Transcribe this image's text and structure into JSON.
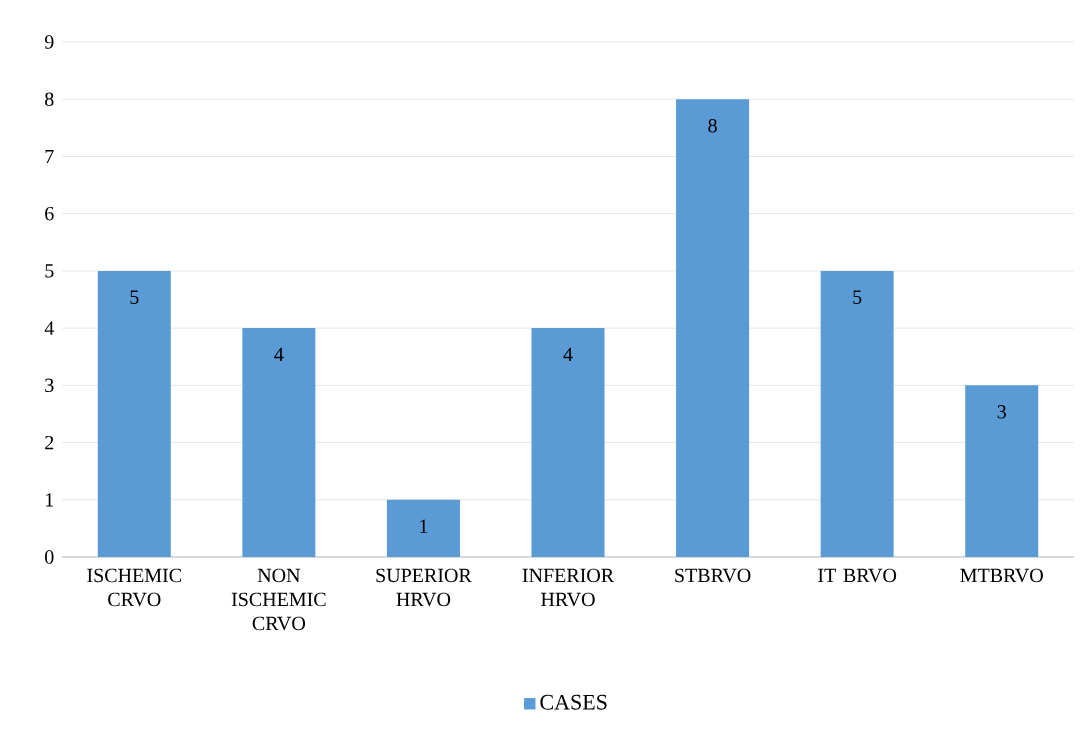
{
  "chart_data": {
    "type": "bar",
    "categories": [
      "ISCHEMIC CRVO",
      "NON ISCHEMIC CRVO",
      "SUPERIOR HRVO",
      "INFERIOR HRVO",
      "STBRVO",
      "IT BRVO",
      "MTBRVO"
    ],
    "series": [
      {
        "name": "CASES",
        "color": "#5b9bd5",
        "values": [
          5,
          4,
          1,
          4,
          8,
          5,
          3
        ]
      }
    ],
    "ylim": [
      0,
      9
    ],
    "yticks": [
      0,
      1,
      2,
      3,
      4,
      5,
      6,
      7,
      8,
      9
    ],
    "grid": "y",
    "legend": "bottom",
    "data_labels": true
  }
}
